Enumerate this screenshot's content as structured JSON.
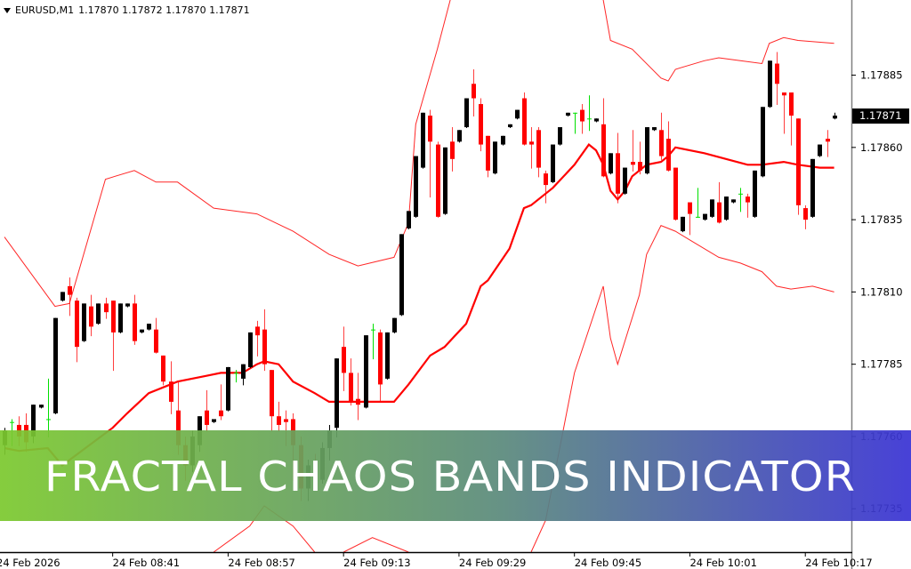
{
  "header": {
    "symbol_timeframe": "EURUSD,M1",
    "ohlc": "1.17870 1.17872 1.17870 1.17871",
    "menu_icon": "triangle-down-icon"
  },
  "banner": {
    "title": "FRACTAL CHAOS BANDS INDICATOR",
    "gradient_colors": [
      "#7cc92f",
      "#5b8a7c",
      "#3a33d4"
    ]
  },
  "colors": {
    "bull_candle": "#000000",
    "bear_candle": "#ff0000",
    "doji_candle": "#00e000",
    "bands": "#ff0000",
    "price_label_bg": "#000000",
    "price_label_text": "#ffffff"
  },
  "chart_data": {
    "type": "candlestick",
    "symbol": "EURUSD",
    "timeframe": "M1",
    "date": "24 Feb 2026",
    "ylim": [
      1.1772,
      1.17911
    ],
    "grid": false,
    "current_price": "1.17871",
    "y_ticks": [
      "1.17885",
      "1.17860",
      "1.17835",
      "1.17810",
      "1.17785",
      "1.17760",
      "1.17735"
    ],
    "x_ticks": [
      {
        "label": "24 Feb 2026",
        "time": "08:25"
      },
      {
        "label": "24 Feb 08:41",
        "time": "08:41"
      },
      {
        "label": "24 Feb 08:57",
        "time": "08:57"
      },
      {
        "label": "24 Feb 09:13",
        "time": "09:13"
      },
      {
        "label": "24 Feb 09:29",
        "time": "09:29"
      },
      {
        "label": "24 Feb 09:45",
        "time": "09:45"
      },
      {
        "label": "24 Feb 10:01",
        "time": "10:01"
      },
      {
        "label": "24 Feb 10:17",
        "time": "10:17"
      }
    ],
    "candle_fields": [
      "time",
      "open",
      "high",
      "low",
      "close"
    ],
    "candles": [
      [
        "08:26",
        1.17757,
        1.17763,
        1.17754,
        1.17762
      ],
      [
        "08:27",
        1.17765,
        1.17766,
        1.17757,
        1.17765
      ],
      [
        "08:28",
        1.17764,
        1.17767,
        1.17757,
        1.1776
      ],
      [
        "08:29",
        1.17764,
        1.17768,
        1.17755,
        1.17758
      ],
      [
        "08:30",
        1.1776,
        1.17771,
        1.17758,
        1.17771
      ],
      [
        "08:31",
        1.1777,
        1.17771,
        1.1777,
        1.17771
      ],
      [
        "08:32",
        1.17766,
        1.1778,
        1.1776,
        1.17766
      ],
      [
        "08:33",
        1.17768,
        1.17801,
        1.17768,
        1.17801
      ],
      [
        "08:34",
        1.17807,
        1.1781,
        1.17807,
        1.1781
      ],
      [
        "08:35",
        1.17812,
        1.17815,
        1.17802,
        1.17809
      ],
      [
        "08:36",
        1.17807,
        1.17808,
        1.17786,
        1.17791
      ],
      [
        "08:37",
        1.17793,
        1.17806,
        1.17793,
        1.17806
      ],
      [
        "08:38",
        1.17805,
        1.17809,
        1.17795,
        1.17798
      ],
      [
        "08:39",
        1.17799,
        1.17806,
        1.17799,
        1.17806
      ],
      [
        "08:40",
        1.17806,
        1.17808,
        1.17801,
        1.17803
      ],
      [
        "08:41",
        1.17807,
        1.17807,
        1.17783,
        1.17796
      ],
      [
        "08:42",
        1.17796,
        1.17806,
        1.17796,
        1.17806
      ],
      [
        "08:43",
        1.17805,
        1.17806,
        1.17805,
        1.17806
      ],
      [
        "08:44",
        1.17806,
        1.17809,
        1.17792,
        1.17793
      ],
      [
        "08:45",
        1.17796,
        1.17797,
        1.17796,
        1.17797
      ],
      [
        "08:46",
        1.17797,
        1.17799,
        1.17797,
        1.17799
      ],
      [
        "08:47",
        1.17797,
        1.17801,
        1.17789,
        1.17789
      ],
      [
        "08:48",
        1.17788,
        1.17788,
        1.17778,
        1.17779
      ],
      [
        "08:49",
        1.17779,
        1.17786,
        1.17768,
        1.17772
      ],
      [
        "08:50",
        1.17769,
        1.17779,
        1.17754,
        1.17757
      ],
      [
        "08:51",
        1.17757,
        1.1776,
        1.17745,
        1.1775
      ],
      [
        "08:52",
        1.1775,
        1.17762,
        1.17748,
        1.1776
      ],
      [
        "08:53",
        1.17757,
        1.17767,
        1.17755,
        1.17767
      ],
      [
        "08:54",
        1.17769,
        1.17776,
        1.17762,
        1.17764
      ],
      [
        "08:55",
        1.17765,
        1.17766,
        1.17765,
        1.17766
      ],
      [
        "08:56",
        1.17769,
        1.17778,
        1.17766,
        1.17767
      ],
      [
        "08:57",
        1.17769,
        1.17784,
        1.17769,
        1.17784
      ],
      [
        "08:58",
        1.17782,
        1.17783,
        1.17779,
        1.17782
      ],
      [
        "08:59",
        1.1778,
        1.17785,
        1.17778,
        1.17785
      ],
      [
        "09:00",
        1.17784,
        1.17796,
        1.17784,
        1.17796
      ],
      [
        "09:01",
        1.17798,
        1.178,
        1.17788,
        1.17795
      ],
      [
        "09:02",
        1.17797,
        1.17804,
        1.17783,
        1.17785
      ],
      [
        "09:03",
        1.17783,
        1.17783,
        1.17762,
        1.17767
      ],
      [
        "09:04",
        1.17767,
        1.17772,
        1.17762,
        1.17764
      ],
      [
        "09:05",
        1.17766,
        1.17769,
        1.17757,
        1.17765
      ],
      [
        "09:06",
        1.17766,
        1.17768,
        1.17745,
        1.17757
      ],
      [
        "09:07",
        1.17757,
        1.1776,
        1.17738,
        1.17742
      ],
      [
        "09:08",
        1.17742,
        1.17752,
        1.17738,
        1.1775
      ],
      [
        "09:09",
        1.1775,
        1.17754,
        1.17742,
        1.17745
      ],
      [
        "09:10",
        1.17745,
        1.17758,
        1.17744,
        1.17756
      ],
      [
        "09:11",
        1.17756,
        1.17764,
        1.17752,
        1.17762
      ],
      [
        "09:12",
        1.17763,
        1.17787,
        1.1776,
        1.17787
      ],
      [
        "09:13",
        1.17791,
        1.17798,
        1.17776,
        1.17782
      ],
      [
        "09:14",
        1.17782,
        1.17787,
        1.17771,
        1.17772
      ],
      [
        "09:15",
        1.17773,
        1.17782,
        1.17766,
        1.17771
      ],
      [
        "09:16",
        1.1777,
        1.17795,
        1.1777,
        1.17795
      ],
      [
        "09:17",
        1.17797,
        1.17799,
        1.17787,
        1.17797
      ],
      [
        "09:18",
        1.17796,
        1.17797,
        1.17772,
        1.17778
      ],
      [
        "09:19",
        1.1778,
        1.17796,
        1.1778,
        1.17796
      ],
      [
        "09:20",
        1.17796,
        1.17801,
        1.17796,
        1.17801
      ],
      [
        "09:21",
        1.17802,
        1.1783,
        1.17802,
        1.1783
      ],
      [
        "09:22",
        1.17832,
        1.17838,
        1.17832,
        1.17838
      ],
      [
        "09:23",
        1.17836,
        1.17857,
        1.17836,
        1.17857
      ],
      [
        "09:24",
        1.17853,
        1.17872,
        1.17853,
        1.17872
      ],
      [
        "09:25",
        1.17871,
        1.17873,
        1.17843,
        1.17862
      ],
      [
        "09:26",
        1.17861,
        1.17862,
        1.17836,
        1.17836
      ],
      [
        "09:27",
        1.17837,
        1.1786,
        1.17837,
        1.1786
      ],
      [
        "09:28",
        1.17862,
        1.17867,
        1.17852,
        1.17856
      ],
      [
        "09:29",
        1.17862,
        1.17866,
        1.17862,
        1.17866
      ],
      [
        "09:30",
        1.17867,
        1.17877,
        1.17867,
        1.17877
      ],
      [
        "09:31",
        1.17882,
        1.17887,
        1.17871,
        1.17877
      ],
      [
        "09:32",
        1.17875,
        1.17877,
        1.17859,
        1.17861
      ],
      [
        "09:33",
        1.17864,
        1.17864,
        1.1785,
        1.17852
      ],
      [
        "09:34",
        1.17851,
        1.17862,
        1.17851,
        1.17862
      ],
      [
        "09:35",
        1.17861,
        1.17864,
        1.17861,
        1.17864
      ],
      [
        "09:36",
        1.17867,
        1.17868,
        1.17867,
        1.17868
      ],
      [
        "09:37",
        1.1787,
        1.17873,
        1.1787,
        1.17873
      ],
      [
        "09:38",
        1.17877,
        1.17879,
        1.17861,
        1.17861
      ],
      [
        "09:39",
        1.17862,
        1.17867,
        1.17853,
        1.17861
      ],
      [
        "09:40",
        1.17866,
        1.17867,
        1.1785,
        1.17853
      ],
      [
        "09:41",
        1.17851,
        1.17852,
        1.17841,
        1.17847
      ],
      [
        "09:42",
        1.17848,
        1.17861,
        1.17848,
        1.17861
      ],
      [
        "09:43",
        1.17861,
        1.17867,
        1.17861,
        1.17867
      ],
      [
        "09:44",
        1.17871,
        1.17872,
        1.17871,
        1.17872
      ],
      [
        "09:45",
        1.17872,
        1.17872,
        1.17865,
        1.17872
      ],
      [
        "09:46",
        1.17873,
        1.17875,
        1.17865,
        1.17869
      ],
      [
        "09:47",
        1.1787,
        1.17878,
        1.17866,
        1.1787
      ],
      [
        "09:48",
        1.17869,
        1.1787,
        1.17869,
        1.1787
      ],
      [
        "09:49",
        1.17868,
        1.17877,
        1.1785,
        1.1785
      ],
      [
        "09:50",
        1.17851,
        1.17858,
        1.17851,
        1.17858
      ],
      [
        "09:51",
        1.17858,
        1.17865,
        1.17841,
        1.17844
      ],
      [
        "09:52",
        1.17844,
        1.17853,
        1.17844,
        1.17853
      ],
      [
        "09:53",
        1.17855,
        1.17866,
        1.17852,
        1.17854
      ],
      [
        "09:54",
        1.17855,
        1.17862,
        1.17851,
        1.17852
      ],
      [
        "09:55",
        1.17851,
        1.17867,
        1.17851,
        1.17867
      ],
      [
        "09:56",
        1.17866,
        1.17867,
        1.17866,
        1.17867
      ],
      [
        "09:57",
        1.17866,
        1.17872,
        1.17856,
        1.17857
      ],
      [
        "09:58",
        1.17863,
        1.17869,
        1.17852,
        1.17852
      ],
      [
        "09:59",
        1.17853,
        1.17853,
        1.17835,
        1.17835
      ],
      [
        "10:00",
        1.17831,
        1.17836,
        1.17831,
        1.17836
      ],
      [
        "10:01",
        1.17841,
        1.17841,
        1.1783,
        1.17837
      ],
      [
        "10:02",
        1.17836,
        1.17846,
        1.17836,
        1.17836
      ],
      [
        "10:03",
        1.17835,
        1.17837,
        1.17835,
        1.17837
      ],
      [
        "10:04",
        1.17836,
        1.17842,
        1.17836,
        1.17842
      ],
      [
        "10:05",
        1.17841,
        1.17848,
        1.17834,
        1.17834
      ],
      [
        "10:06",
        1.17835,
        1.17843,
        1.17835,
        1.17843
      ],
      [
        "10:07",
        1.17841,
        1.17842,
        1.17841,
        1.17842
      ],
      [
        "10:08",
        1.17844,
        1.17846,
        1.17838,
        1.17844
      ],
      [
        "10:09",
        1.17843,
        1.17844,
        1.17836,
        1.17841
      ],
      [
        "10:10",
        1.17836,
        1.17852,
        1.17836,
        1.17852
      ],
      [
        "10:11",
        1.1785,
        1.17874,
        1.1785,
        1.17874
      ],
      [
        "10:12",
        1.17874,
        1.1789,
        1.17874,
        1.1789
      ],
      [
        "10:13",
        1.17889,
        1.17893,
        1.17875,
        1.17882
      ],
      [
        "10:14",
        1.17879,
        1.17879,
        1.17865,
        1.17878
      ],
      [
        "10:15",
        1.17879,
        1.17879,
        1.17861,
        1.17871
      ],
      [
        "10:16",
        1.1787,
        1.1787,
        1.17837,
        1.1784
      ],
      [
        "10:17",
        1.17839,
        1.1784,
        1.17832,
        1.17835
      ],
      [
        "10:18",
        1.17836,
        1.17856,
        1.17836,
        1.17856
      ],
      [
        "10:19",
        1.17857,
        1.17861,
        1.17857,
        1.17861
      ],
      [
        "10:20",
        1.17863,
        1.17866,
        1.17857,
        1.17862
      ],
      [
        "10:21",
        1.1787,
        1.17872,
        1.1787,
        1.17871
      ]
    ],
    "bands": {
      "upper": [
        [
          "08:26",
          1.17829
        ],
        [
          "08:33",
          1.17805
        ],
        [
          "08:35",
          1.17806
        ],
        [
          "08:40",
          1.17849
        ],
        [
          "08:44",
          1.17852
        ],
        [
          "08:47",
          1.17848
        ],
        [
          "08:50",
          1.17848
        ],
        [
          "08:55",
          1.17839
        ],
        [
          "09:01",
          1.17837
        ],
        [
          "09:06",
          1.17831
        ],
        [
          "09:11",
          1.17823
        ],
        [
          "09:15",
          1.17819
        ],
        [
          "09:20",
          1.17822
        ],
        [
          "09:22",
          1.17834
        ],
        [
          "09:23",
          1.17868
        ],
        [
          "09:26",
          1.17894
        ],
        [
          "09:28",
          1.17913
        ],
        [
          "09:30",
          1.17925
        ],
        [
          "09:47",
          1.17925
        ],
        [
          "09:49",
          1.17911
        ],
        [
          "09:50",
          1.17897
        ],
        [
          "09:53",
          1.17894
        ],
        [
          "09:57",
          1.17884
        ],
        [
          "09:58",
          1.17883
        ],
        [
          "09:59",
          1.17887
        ],
        [
          "10:03",
          1.1789
        ],
        [
          "10:05",
          1.17891
        ],
        [
          "10:08",
          1.1789
        ],
        [
          "10:11",
          1.17889
        ],
        [
          "10:12",
          1.17896
        ],
        [
          "10:14",
          1.17898
        ],
        [
          "10:16",
          1.17897
        ],
        [
          "10:21",
          1.17896
        ]
      ],
      "middle": [
        [
          "08:26",
          1.17756
        ],
        [
          "08:28",
          1.17755
        ],
        [
          "08:32",
          1.17756
        ],
        [
          "08:34",
          1.1775
        ],
        [
          "08:41",
          1.17763
        ],
        [
          "08:43",
          1.17768
        ],
        [
          "08:46",
          1.17775
        ],
        [
          "08:50",
          1.17779
        ],
        [
          "08:54",
          1.17781
        ],
        [
          "08:56",
          1.17782
        ],
        [
          "08:59",
          1.17782
        ],
        [
          "09:01",
          1.17785
        ],
        [
          "09:02",
          1.17786
        ],
        [
          "09:04",
          1.17785
        ],
        [
          "09:06",
          1.17779
        ],
        [
          "09:09",
          1.17775
        ],
        [
          "09:11",
          1.17772
        ],
        [
          "09:13",
          1.17772
        ],
        [
          "09:17",
          1.17772
        ],
        [
          "09:20",
          1.17772
        ],
        [
          "09:22",
          1.17778
        ],
        [
          "09:25",
          1.17788
        ],
        [
          "09:27",
          1.17791
        ],
        [
          "09:30",
          1.17799
        ],
        [
          "09:32",
          1.17812
        ],
        [
          "09:33",
          1.17814
        ],
        [
          "09:36",
          1.17825
        ],
        [
          "09:38",
          1.17839
        ],
        [
          "09:39",
          1.1784
        ],
        [
          "09:42",
          1.17846
        ],
        [
          "09:45",
          1.17854
        ],
        [
          "09:47",
          1.17861
        ],
        [
          "09:48",
          1.17859
        ],
        [
          "09:49",
          1.17854
        ],
        [
          "09:50",
          1.17845
        ],
        [
          "09:51",
          1.17842
        ],
        [
          "09:52",
          1.17845
        ],
        [
          "09:53",
          1.1785
        ],
        [
          "09:55",
          1.17854
        ],
        [
          "09:57",
          1.17855
        ],
        [
          "09:58",
          1.17857
        ],
        [
          "09:59",
          1.1786
        ],
        [
          "10:03",
          1.17858
        ],
        [
          "10:06",
          1.17856
        ],
        [
          "10:09",
          1.17854
        ],
        [
          "10:11",
          1.17854
        ],
        [
          "10:14",
          1.17855
        ],
        [
          "10:16",
          1.17854
        ],
        [
          "10:19",
          1.17853
        ],
        [
          "10:21",
          1.17853
        ]
      ],
      "lower": [
        [
          "08:55",
          1.1772
        ],
        [
          "09:00",
          1.17729
        ],
        [
          "09:02",
          1.17736
        ],
        [
          "09:06",
          1.17729
        ],
        [
          "09:09",
          1.1772
        ],
        null,
        [
          "09:13",
          1.1772
        ],
        [
          "09:17",
          1.17725
        ],
        [
          "09:22",
          1.1772
        ],
        null,
        [
          "09:39",
          1.1772
        ],
        [
          "09:41",
          1.17731
        ],
        [
          "09:45",
          1.17782
        ],
        [
          "09:49",
          1.17812
        ],
        [
          "09:50",
          1.17794
        ],
        [
          "09:51",
          1.17785
        ],
        [
          "09:54",
          1.17809
        ],
        [
          "09:55",
          1.17823
        ],
        [
          "09:57",
          1.17833
        ],
        [
          "09:59",
          1.17831
        ],
        [
          "10:01",
          1.17828
        ],
        [
          "10:05",
          1.17822
        ],
        [
          "10:08",
          1.1782
        ],
        [
          "10:11",
          1.17817
        ],
        [
          "10:13",
          1.17812
        ],
        [
          "10:15",
          1.17811
        ],
        [
          "10:18",
          1.17812
        ],
        [
          "10:21",
          1.1781
        ]
      ]
    }
  }
}
